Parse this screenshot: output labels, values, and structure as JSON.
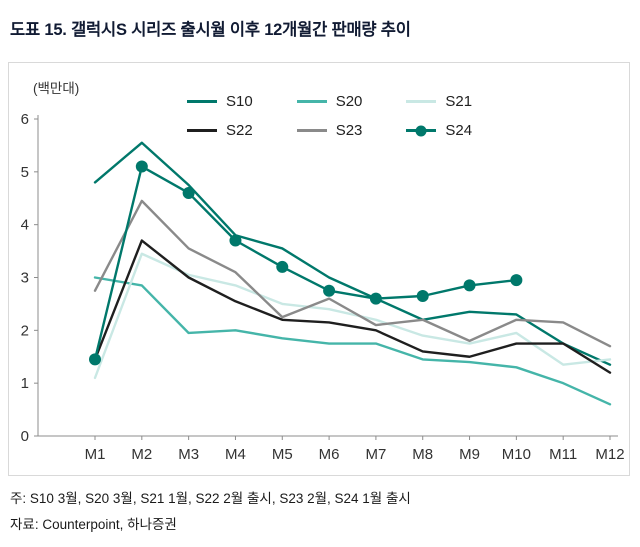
{
  "title": "도표 15. 갤럭시S 시리즈 출시월 이후 12개월간 판매량 추이",
  "unit_label": "(백만대)",
  "notes": {
    "note1": "주: S10 3월, S20 3월, S21 1월, S22 2월 출시, S23 2월, S24 1월 출시",
    "note2": "자료: Counterpoint, 하나증권"
  },
  "colors": {
    "s10": "#00786B",
    "s20": "#45B5A9",
    "s21": "#C9E8E4",
    "s22": "#1F1F1F",
    "s23": "#8A8A8A",
    "s24": "#00786B",
    "axis": "#8c8c8c",
    "tick_text": "#333333"
  },
  "chart_data": {
    "type": "line",
    "title": "도표 15. 갤럭시S 시리즈 출시월 이후 12개월간 판매량 추이",
    "ylabel": "(백만대)",
    "xlabel": "",
    "x": [
      "M1",
      "M2",
      "M3",
      "M4",
      "M5",
      "M6",
      "M7",
      "M8",
      "M9",
      "M10",
      "M11",
      "M12"
    ],
    "ylim": [
      0,
      6
    ],
    "yticks": [
      0,
      1,
      2,
      3,
      4,
      5,
      6
    ],
    "grid": false,
    "legend_position": "top",
    "series": [
      {
        "name": "S10",
        "color": "#00786B",
        "marker": false,
        "values": [
          4.8,
          5.55,
          4.75,
          3.8,
          3.55,
          3.0,
          2.6,
          2.2,
          2.35,
          2.3,
          1.75,
          1.35
        ]
      },
      {
        "name": "S20",
        "color": "#45B5A9",
        "marker": false,
        "values": [
          3.0,
          2.85,
          1.95,
          2.0,
          1.85,
          1.75,
          1.75,
          1.45,
          1.4,
          1.3,
          1.0,
          0.6
        ]
      },
      {
        "name": "S21",
        "color": "#C9E8E4",
        "marker": false,
        "values": [
          1.1,
          3.45,
          3.05,
          2.85,
          2.5,
          2.4,
          2.2,
          1.9,
          1.75,
          1.95,
          1.35,
          1.45
        ]
      },
      {
        "name": "S22",
        "color": "#1F1F1F",
        "marker": false,
        "values": [
          1.45,
          3.7,
          3.0,
          2.55,
          2.2,
          2.15,
          2.0,
          1.6,
          1.5,
          1.75,
          1.75,
          1.2
        ]
      },
      {
        "name": "S23",
        "color": "#8A8A8A",
        "marker": false,
        "values": [
          2.75,
          4.45,
          3.55,
          3.1,
          2.25,
          2.6,
          2.1,
          2.2,
          1.8,
          2.2,
          2.15,
          1.7
        ]
      },
      {
        "name": "S24",
        "color": "#00786B",
        "marker": true,
        "values": [
          1.45,
          5.1,
          4.6,
          3.7,
          3.2,
          2.75,
          2.6,
          2.65,
          2.85,
          2.95,
          null,
          null
        ]
      }
    ]
  }
}
